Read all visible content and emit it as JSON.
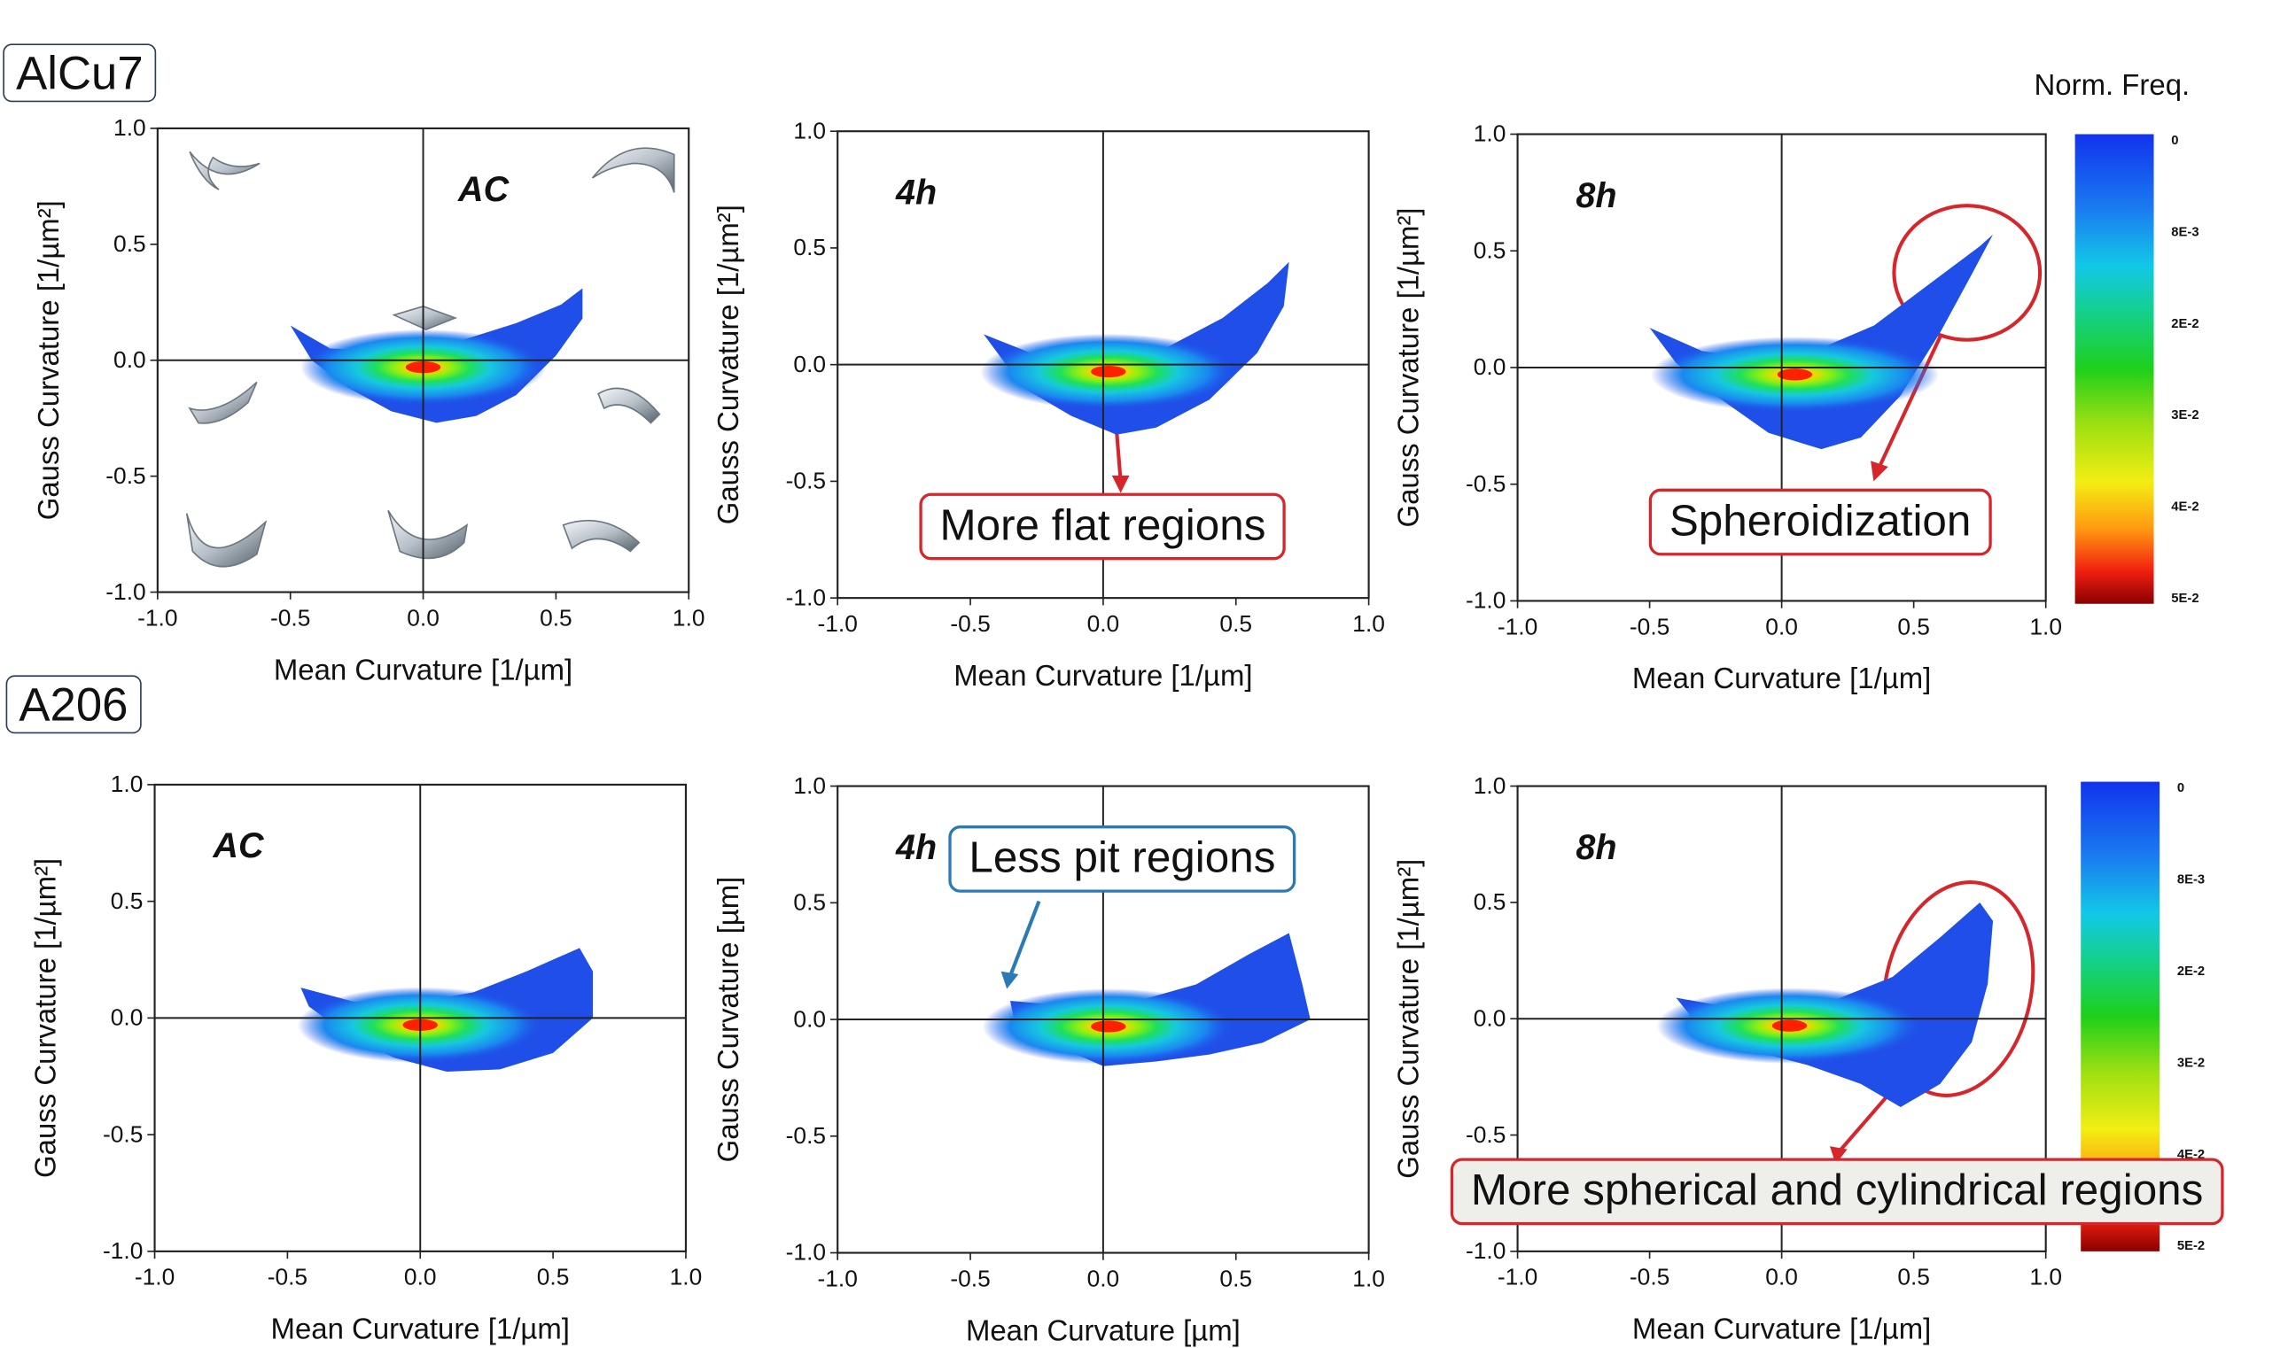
{
  "row_labels": [
    "AlCu7",
    "A206"
  ],
  "colorbar": {
    "title": "Norm. Freq.",
    "ticks": [
      "0",
      "8E-3",
      "2E-2",
      "3E-2",
      "4E-2",
      "5E-2"
    ]
  },
  "callouts": {
    "flat": "More flat regions",
    "spheroid": "Spheroidization",
    "pit": "Less pit regions",
    "spherical": "More spherical and cylindrical regions"
  },
  "colors": {
    "callout_red": "#d6262b",
    "callout_blue": "#2a7ab5",
    "density_low": "#1f4fe8",
    "density_high": "#ff2000"
  },
  "chart_data": [
    {
      "type": "heatmap",
      "title": "AC",
      "row": "AlCu7",
      "xlabel": "Mean Curvature [1/µm]",
      "ylabel": "Gauss Curvature [1/µm²]",
      "xlim": [
        -1.0,
        1.0
      ],
      "ylim": [
        -1.0,
        1.0
      ],
      "xticks": [
        "-1.0",
        "-0.5",
        "0.0",
        "0.5",
        "1.0"
      ],
      "yticks": [
        "-1.0",
        "-0.5",
        "0.0",
        "0.5",
        "1.0"
      ],
      "region": {
        "x_extent": [
          -0.5,
          0.6
        ],
        "y_extent": [
          -0.27,
          0.3
        ]
      },
      "peak": {
        "x": 0.0,
        "y": -0.03
      },
      "shape_icons": true
    },
    {
      "type": "heatmap",
      "title": "4h",
      "row": "AlCu7",
      "xlabel": "Mean Curvature [1/µm]",
      "ylabel": "Gauss Curvature [1/µm²]",
      "xlim": [
        -1.0,
        1.0
      ],
      "ylim": [
        -1.0,
        1.0
      ],
      "xticks": [
        "-1.0",
        "-0.5",
        "0.0",
        "0.5",
        "1.0"
      ],
      "yticks": [
        "-1.0",
        "-0.5",
        "0.0",
        "0.5",
        "1.0"
      ],
      "region": {
        "x_extent": [
          -0.45,
          0.7
        ],
        "y_extent": [
          -0.3,
          0.45
        ]
      },
      "peak": {
        "x": 0.02,
        "y": -0.03
      }
    },
    {
      "type": "heatmap",
      "title": "8h",
      "row": "AlCu7",
      "xlabel": "Mean Curvature [1/µm]",
      "ylabel": "Gauss Curvature [1/µm²]",
      "xlim": [
        -1.0,
        1.0
      ],
      "ylim": [
        -1.0,
        1.0
      ],
      "xticks": [
        "-1.0",
        "-0.5",
        "0.0",
        "0.5",
        "1.0"
      ],
      "yticks": [
        "-1.0",
        "-0.5",
        "0.0",
        "0.5",
        "1.0"
      ],
      "region": {
        "x_extent": [
          -0.5,
          0.8
        ],
        "y_extent": [
          -0.35,
          0.57
        ]
      },
      "peak": {
        "x": 0.05,
        "y": -0.03
      }
    },
    {
      "type": "heatmap",
      "title": "AC",
      "row": "A206",
      "xlabel": "Mean Curvature [1/µm]",
      "ylabel": "Gauss Curvature [1/µm²]",
      "xlim": [
        -1.0,
        1.0
      ],
      "ylim": [
        -1.0,
        1.0
      ],
      "xticks": [
        "-1.0",
        "-0.5",
        "0.0",
        "0.5",
        "1.0"
      ],
      "yticks": [
        "-1.0",
        "-0.5",
        "0.0",
        "0.5",
        "1.0"
      ],
      "region": {
        "x_extent": [
          -0.45,
          0.65
        ],
        "y_extent": [
          -0.23,
          0.3
        ]
      },
      "peak": {
        "x": 0.0,
        "y": -0.03
      }
    },
    {
      "type": "heatmap",
      "title": "4h",
      "row": "A206",
      "xlabel": "Mean Curvature [µm]",
      "ylabel": "Gauss Curvature [µm]",
      "xlim": [
        -1.0,
        1.0
      ],
      "ylim": [
        -1.0,
        1.0
      ],
      "xticks": [
        "-1.0",
        "-0.5",
        "0.0",
        "0.5",
        "1.0"
      ],
      "yticks": [
        "-1.0",
        "-0.5",
        "0.0",
        "0.5",
        "1.0"
      ],
      "region": {
        "x_extent": [
          -0.35,
          0.78
        ],
        "y_extent": [
          -0.2,
          0.37
        ]
      },
      "peak": {
        "x": 0.02,
        "y": -0.03
      }
    },
    {
      "type": "heatmap",
      "title": "8h",
      "row": "A206",
      "xlabel": "Mean Curvature [1/µm]",
      "ylabel": "Gauss Curvature [1/µm²]",
      "xlim": [
        -1.0,
        1.0
      ],
      "ylim": [
        -1.0,
        1.0
      ],
      "xticks": [
        "-1.0",
        "-0.5",
        "0.0",
        "0.5",
        "1.0"
      ],
      "yticks": [
        "-1.0",
        "-0.5",
        "0.0",
        "0.5",
        "1.0"
      ],
      "region": {
        "x_extent": [
          -0.4,
          0.8
        ],
        "y_extent": [
          -0.55,
          0.5
        ]
      },
      "peak": {
        "x": 0.03,
        "y": -0.03
      }
    }
  ]
}
